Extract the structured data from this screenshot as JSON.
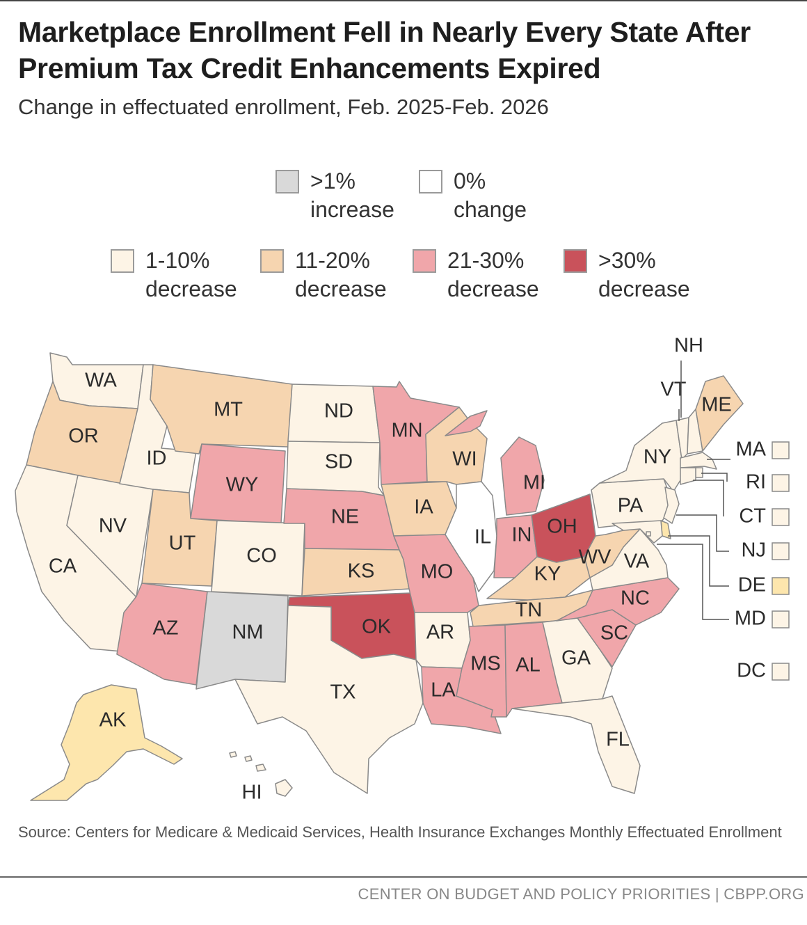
{
  "title": "Marketplace Enrollment Fell in Nearly Every State After Premium Tax Credit Enhancements Expired",
  "subtitle": "Change in effectuated enrollment, Feb. 2025-Feb. 2026",
  "colors": {
    "increase": "#d9d9d9",
    "no_change": "#ffffff",
    "dec_1_10": "#fdf4e6",
    "dec_11_20": "#f6d5b0",
    "dec_21_30": "#f0a6aa",
    "dec_30_plus": "#c9525b",
    "alaska_fill": "#fde6ad",
    "outline": "#8a8a8a"
  },
  "legend": [
    {
      "id": "increase",
      "text": ">1%\nincrease"
    },
    {
      "id": "no_change",
      "text": "0%\nchange"
    },
    {
      "id": "dec_1_10",
      "text": "1-10%\ndecrease"
    },
    {
      "id": "dec_11_20",
      "text": "11-20%\ndecrease"
    },
    {
      "id": "dec_21_30",
      "text": "21-30%\ndecrease"
    },
    {
      "id": "dec_30_plus",
      "text": ">30%\ndecrease"
    }
  ],
  "states": {
    "WA": {
      "label": "WA",
      "category": "dec_1_10"
    },
    "OR": {
      "label": "OR",
      "category": "dec_11_20"
    },
    "CA": {
      "label": "CA",
      "category": "dec_1_10"
    },
    "NV": {
      "label": "NV",
      "category": "dec_1_10"
    },
    "ID": {
      "label": "ID",
      "category": "dec_1_10"
    },
    "MT": {
      "label": "MT",
      "category": "dec_11_20"
    },
    "WY": {
      "label": "WY",
      "category": "dec_21_30"
    },
    "UT": {
      "label": "UT",
      "category": "dec_11_20"
    },
    "CO": {
      "label": "CO",
      "category": "dec_1_10"
    },
    "AZ": {
      "label": "AZ",
      "category": "dec_21_30"
    },
    "NM": {
      "label": "NM",
      "category": "increase"
    },
    "ND": {
      "label": "ND",
      "category": "dec_1_10"
    },
    "SD": {
      "label": "SD",
      "category": "dec_1_10"
    },
    "NE": {
      "label": "NE",
      "category": "dec_21_30"
    },
    "KS": {
      "label": "KS",
      "category": "dec_11_20"
    },
    "OK": {
      "label": "OK",
      "category": "dec_30_plus"
    },
    "TX": {
      "label": "TX",
      "category": "dec_1_10"
    },
    "MN": {
      "label": "MN",
      "category": "dec_21_30"
    },
    "IA": {
      "label": "IA",
      "category": "dec_11_20"
    },
    "MO": {
      "label": "MO",
      "category": "dec_21_30"
    },
    "AR": {
      "label": "AR",
      "category": "dec_1_10"
    },
    "LA": {
      "label": "LA",
      "category": "dec_21_30"
    },
    "WI": {
      "label": "WI",
      "category": "dec_11_20"
    },
    "IL": {
      "label": "IL",
      "category": "no_change"
    },
    "MI": {
      "label": "MI",
      "category": "dec_21_30"
    },
    "IN": {
      "label": "IN",
      "category": "dec_21_30"
    },
    "OH": {
      "label": "OH",
      "category": "dec_30_plus"
    },
    "KY": {
      "label": "KY",
      "category": "dec_11_20"
    },
    "TN": {
      "label": "TN",
      "category": "dec_11_20"
    },
    "MS": {
      "label": "MS",
      "category": "dec_21_30"
    },
    "AL": {
      "label": "AL",
      "category": "dec_21_30"
    },
    "GA": {
      "label": "GA",
      "category": "dec_1_10"
    },
    "FL": {
      "label": "FL",
      "category": "dec_1_10"
    },
    "SC": {
      "label": "SC",
      "category": "dec_21_30"
    },
    "NC": {
      "label": "NC",
      "category": "dec_21_30"
    },
    "VA": {
      "label": "VA",
      "category": "dec_1_10"
    },
    "WV": {
      "label": "WV",
      "category": "dec_11_20"
    },
    "PA": {
      "label": "PA",
      "category": "dec_1_10"
    },
    "NY": {
      "label": "NY",
      "category": "dec_1_10"
    },
    "VT": {
      "label": "VT",
      "category": "dec_1_10"
    },
    "NH": {
      "label": "NH",
      "category": "dec_1_10"
    },
    "ME": {
      "label": "ME",
      "category": "dec_11_20"
    },
    "MA": {
      "label": "MA",
      "category": "dec_1_10"
    },
    "RI": {
      "label": "RI",
      "category": "dec_1_10"
    },
    "CT": {
      "label": "CT",
      "category": "dec_1_10"
    },
    "NJ": {
      "label": "NJ",
      "category": "dec_1_10"
    },
    "DE": {
      "label": "DE",
      "category": "dec_11_20"
    },
    "MD": {
      "label": "MD",
      "category": "dec_1_10"
    },
    "DC": {
      "label": "DC",
      "category": "dec_1_10"
    },
    "AK": {
      "label": "AK",
      "category": "dec_11_20"
    },
    "HI": {
      "label": "HI",
      "category": "dec_1_10"
    }
  },
  "source": "Source: Centers for Medicare & Medicaid Services, Health Insurance Exchanges Monthly Effectuated Enrollment",
  "credit": "CENTER ON BUDGET AND POLICY PRIORITIES | CBPP.ORG"
}
